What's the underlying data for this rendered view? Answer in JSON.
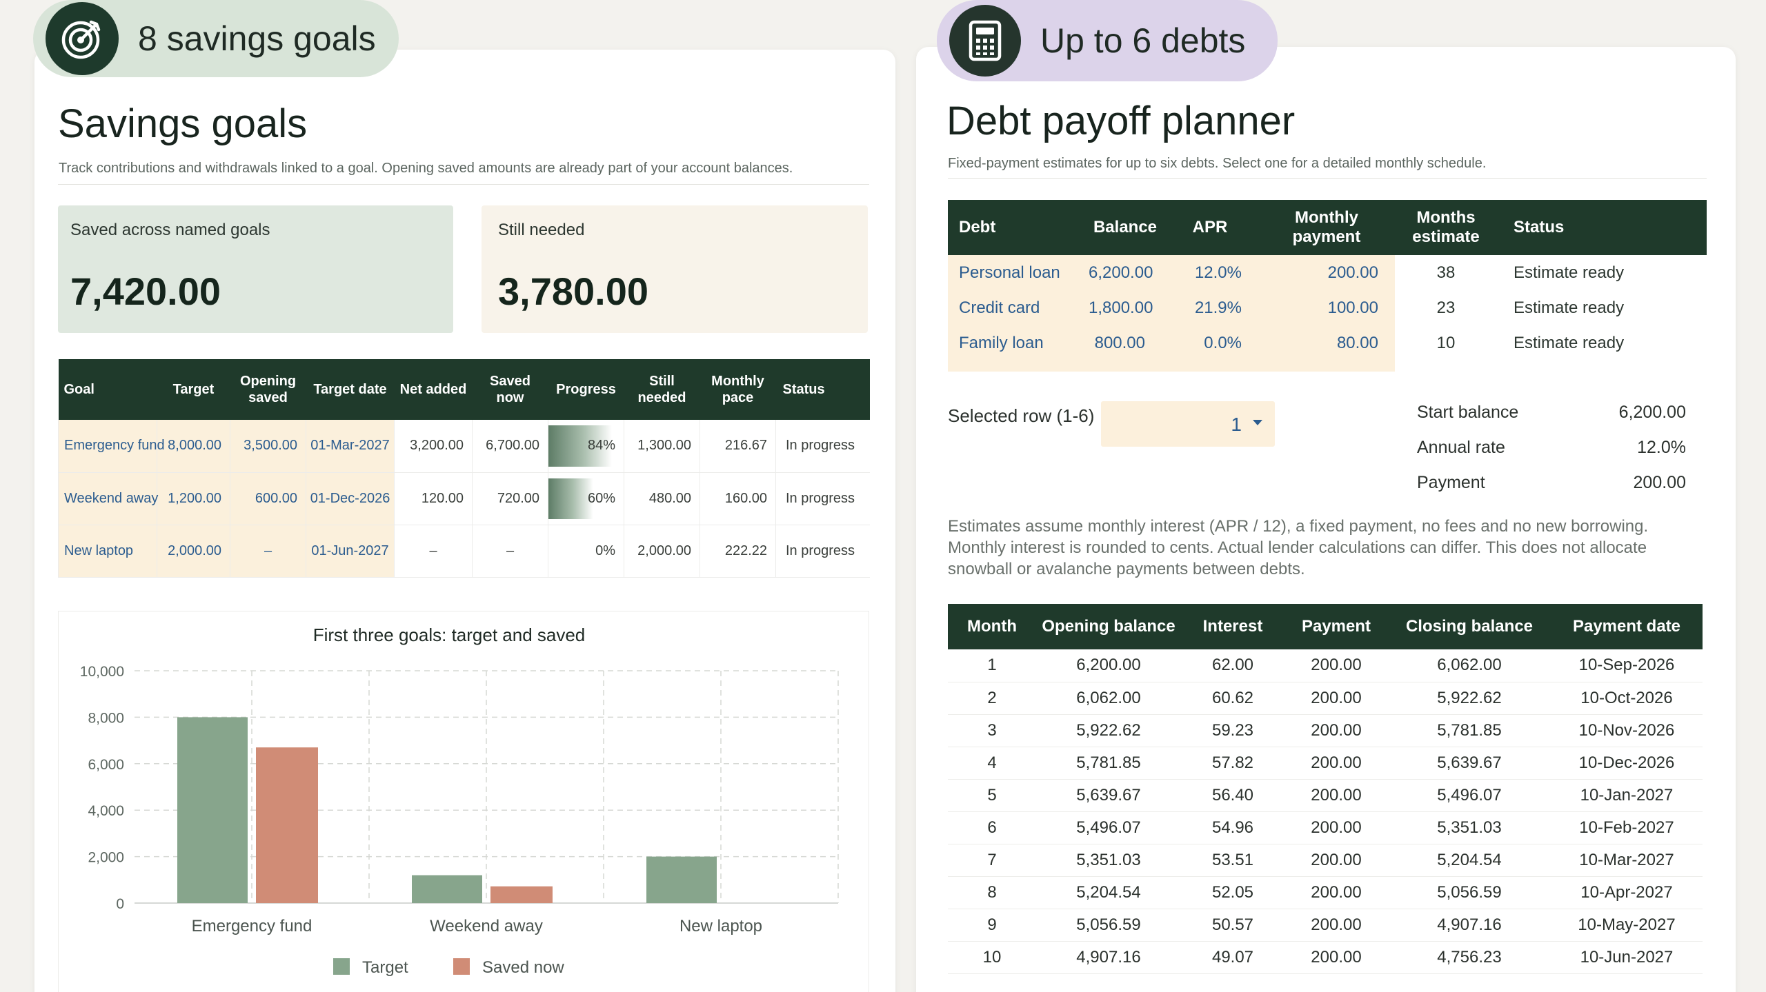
{
  "savings": {
    "pill_label": "8 savings goals",
    "title": "Savings goals",
    "subtitle": "Track contributions and withdrawals linked to a goal. Opening saved amounts are already part of your account balances.",
    "saved_label": "Saved across named goals",
    "saved_value": "7,420.00",
    "needed_label": "Still needed",
    "needed_value": "3,780.00",
    "columns": [
      "Goal",
      "Target",
      "Opening saved",
      "Target date",
      "Net added",
      "Saved now",
      "Progress",
      "Still needed",
      "Monthly pace",
      "Status"
    ],
    "rows": [
      {
        "goal": "Emergency fund",
        "target": "8,000.00",
        "opening": "3,500.00",
        "date": "01-Mar-2027",
        "net": "3,200.00",
        "saved": "6,700.00",
        "progress": "84%",
        "progress_value": 0.84,
        "needed": "1,300.00",
        "pace": "216.67",
        "status": "In progress"
      },
      {
        "goal": "Weekend away",
        "target": "1,200.00",
        "opening": "600.00",
        "date": "01-Dec-2026",
        "net": "120.00",
        "saved": "720.00",
        "progress": "60%",
        "progress_value": 0.6,
        "needed": "480.00",
        "pace": "160.00",
        "status": "In progress"
      },
      {
        "goal": "New laptop",
        "target": "2,000.00",
        "opening": "–",
        "date": "01-Jun-2027",
        "net": "–",
        "saved": "–",
        "progress": "0%",
        "progress_value": 0,
        "needed": "2,000.00",
        "pace": "222.22",
        "status": "In progress"
      }
    ]
  },
  "chart_data": {
    "type": "bar",
    "title": "First three goals: target and saved",
    "categories": [
      "Emergency fund",
      "Weekend away",
      "New laptop"
    ],
    "series": [
      {
        "name": "Target",
        "values": [
          8000,
          1200,
          2000
        ],
        "color": "#87a58c"
      },
      {
        "name": "Saved now",
        "values": [
          6700,
          720,
          0
        ],
        "color": "#d08c76"
      }
    ],
    "ylim": [
      0,
      10000
    ],
    "yticks": [
      "0",
      "2,000",
      "4,000",
      "6,000",
      "8,000",
      "10,000"
    ],
    "ytick_values": [
      0,
      2000,
      4000,
      6000,
      8000,
      10000
    ],
    "grid": true,
    "legend": "bottom-center"
  },
  "debt": {
    "pill_label": "Up to 6 debts",
    "title": "Debt payoff planner",
    "subtitle": "Fixed-payment estimates for up to six debts. Select one for a detailed monthly schedule.",
    "columns": [
      "Debt",
      "Balance",
      "APR",
      "Monthly payment",
      "Months estimate",
      "Status"
    ],
    "rows": [
      {
        "name": "Personal loan",
        "balance": "6,200.00",
        "apr": "12.0%",
        "payment": "200.00",
        "months": "38",
        "status": "Estimate ready"
      },
      {
        "name": "Credit card",
        "balance": "1,800.00",
        "apr": "21.9%",
        "payment": "100.00",
        "months": "23",
        "status": "Estimate ready"
      },
      {
        "name": "Family loan",
        "balance": "800.00",
        "apr": "0.0%",
        "payment": "80.00",
        "months": "10",
        "status": "Estimate ready"
      }
    ],
    "selector_label": "Selected row (1-6)",
    "selector_value": "1",
    "summary": [
      {
        "label": "Start balance",
        "value": "6,200.00"
      },
      {
        "label": "Annual rate",
        "value": "12.0%"
      },
      {
        "label": "Payment",
        "value": "200.00"
      }
    ],
    "note": "Estimates assume monthly interest (APR / 12), a fixed payment, no fees and no new borrowing. Monthly interest is rounded to cents. Actual lender calculations can differ. This does not allocate snowball or avalanche payments between debts.",
    "schedule_columns": [
      "Month",
      "Opening balance",
      "Interest",
      "Payment",
      "Closing balance",
      "Payment date"
    ],
    "schedule": [
      [
        "1",
        "6,200.00",
        "62.00",
        "200.00",
        "6,062.00",
        "10-Sep-2026"
      ],
      [
        "2",
        "6,062.00",
        "60.62",
        "200.00",
        "5,922.62",
        "10-Oct-2026"
      ],
      [
        "3",
        "5,922.62",
        "59.23",
        "200.00",
        "5,781.85",
        "10-Nov-2026"
      ],
      [
        "4",
        "5,781.85",
        "57.82",
        "200.00",
        "5,639.67",
        "10-Dec-2026"
      ],
      [
        "5",
        "5,639.67",
        "56.40",
        "200.00",
        "5,496.07",
        "10-Jan-2027"
      ],
      [
        "6",
        "5,496.07",
        "54.96",
        "200.00",
        "5,351.03",
        "10-Feb-2027"
      ],
      [
        "7",
        "5,351.03",
        "53.51",
        "200.00",
        "5,204.54",
        "10-Mar-2027"
      ],
      [
        "8",
        "5,204.54",
        "52.05",
        "200.00",
        "5,056.59",
        "10-Apr-2027"
      ],
      [
        "9",
        "5,056.59",
        "50.57",
        "200.00",
        "4,907.16",
        "10-May-2027"
      ],
      [
        "10",
        "4,907.16",
        "49.07",
        "200.00",
        "4,756.23",
        "10-Jun-2027"
      ]
    ]
  },
  "colors": {
    "header_green": "#1f3a2b",
    "input_cell": "#fcf0dc",
    "input_text": "#2b5c8f",
    "savings_pill": "#d8e4d8",
    "debt_pill": "#dcd3ea"
  },
  "icons": {
    "savings_pill": "target-icon",
    "debt_pill": "calculator-icon",
    "selector": "dropdown-arrow-icon"
  }
}
